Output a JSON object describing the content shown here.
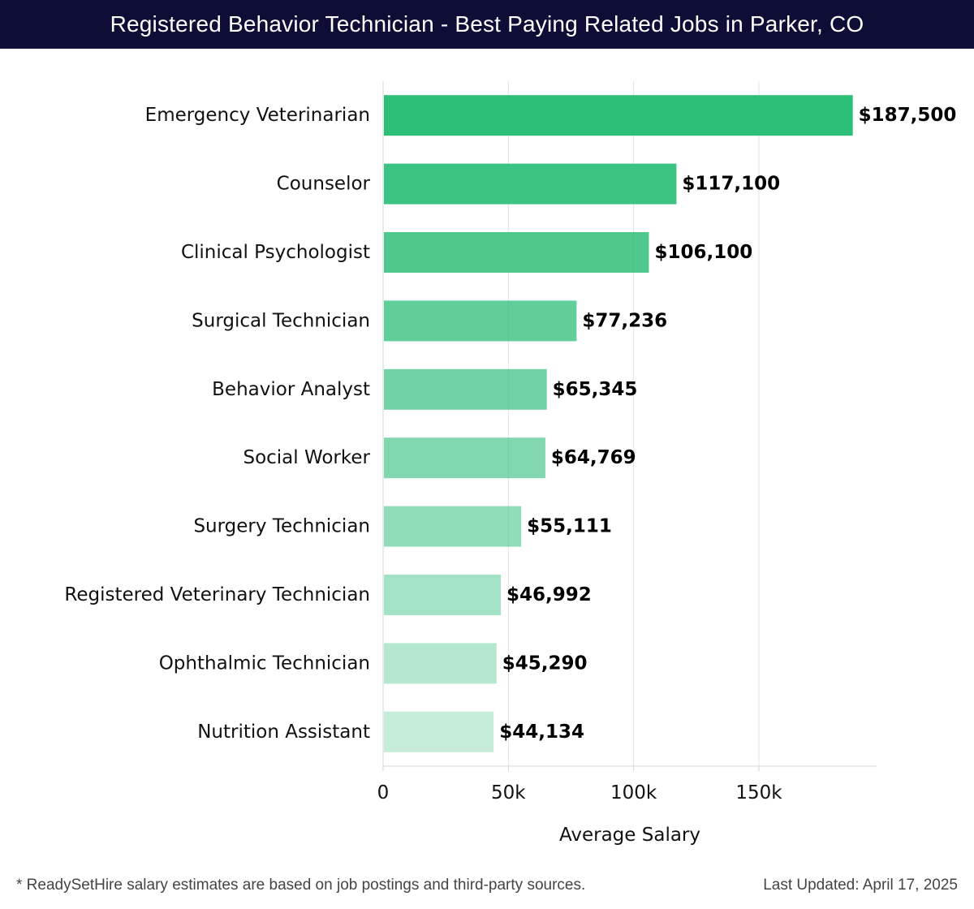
{
  "header": {
    "title": "Registered Behavior Technician - Best Paying Related Jobs in Parker, CO"
  },
  "chart_data": {
    "type": "bar",
    "orientation": "horizontal",
    "title": "Registered Behavior Technician - Best Paying Related Jobs in Parker, CO",
    "xlabel": "Average Salary",
    "ylabel": "",
    "xlim": [
      0,
      197000
    ],
    "xticks": [
      0,
      50000,
      100000,
      150000
    ],
    "xtick_labels": [
      "0",
      "50k",
      "100k",
      "150k"
    ],
    "grid": true,
    "bar_color": "#2dbe78",
    "categories": [
      "Emergency Veterinarian",
      "Counselor",
      "Clinical Psychologist",
      "Surgical Technician",
      "Behavior Analyst",
      "Social Worker",
      "Surgery Technician",
      "Registered Veterinary Technician",
      "Ophthalmic Technician",
      "Nutrition Assistant"
    ],
    "values": [
      187500,
      117100,
      106100,
      77236,
      65345,
      64769,
      55111,
      46992,
      45290,
      44134
    ],
    "value_labels": [
      "$187,500",
      "$117,100",
      "$106,100",
      "$77,236",
      "$65,345",
      "$64,769",
      "$55,111",
      "$46,992",
      "$45,290",
      "$44,134"
    ]
  },
  "footer": {
    "note": "* ReadySetHire salary estimates are based on job postings and third-party sources.",
    "updated": "Last Updated: April 17, 2025"
  }
}
